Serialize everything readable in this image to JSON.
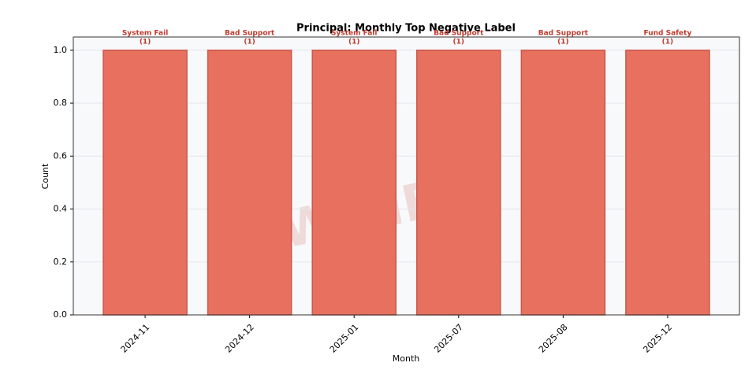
{
  "chart_data": {
    "type": "bar",
    "title": "Principal: Monthly Top Negative Label",
    "x_label": "Month",
    "y_label": "Count",
    "categories": [
      "2024-11",
      "2024-12",
      "2025-01",
      "2025-07",
      "2025-08",
      "2025-12"
    ],
    "values": [
      1,
      1,
      1,
      1,
      1,
      1
    ],
    "value_labels": [
      "(1)",
      "(1)",
      "(1)",
      "(1)",
      "(1)",
      "(1)"
    ],
    "bar_labels": [
      "System Fail",
      "Bad Support",
      "System Fail",
      "Bad Support",
      "Bad Support",
      "Fund Safety"
    ],
    "color": "#e8705f",
    "ylim": [
      0,
      1.05
    ],
    "yticks": [
      {
        "value": 0,
        "label": "0.0"
      },
      {
        "value": 0.2,
        "label": "0.2"
      },
      {
        "value": 0.4,
        "label": "0.4"
      },
      {
        "value": 0.6,
        "label": "0.6"
      },
      {
        "value": 0.8,
        "label": "0.8"
      },
      {
        "value": 1,
        "label": "1.0"
      }
    ],
    "grid": true,
    "watermark": "WikiFX"
  }
}
